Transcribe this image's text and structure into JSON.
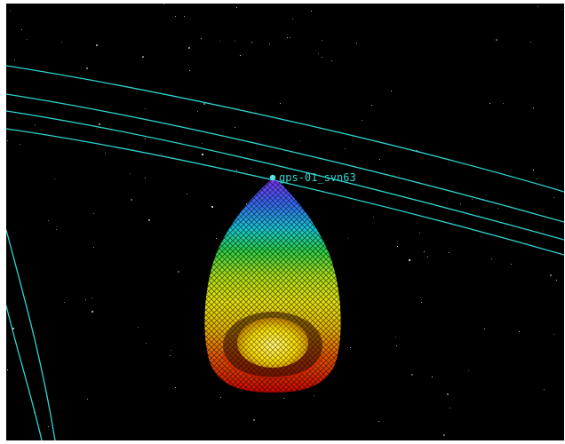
{
  "scene": {
    "satellite_label": "gps-01_svn63",
    "colors": {
      "background": "#000000",
      "orbit": "#2fd4cf",
      "star": "#cfcfcf",
      "beam_gradient": [
        "#7a2cff",
        "#2f7bff",
        "#1ecfe0",
        "#2edc4a",
        "#b8ea18",
        "#f2ef10",
        "#f0a400",
        "#ee3a00",
        "#d80000"
      ]
    },
    "icons": {
      "satellite_marker": "satellite-marker-icon",
      "sensor_cone": "sensor-cone-icon"
    }
  }
}
